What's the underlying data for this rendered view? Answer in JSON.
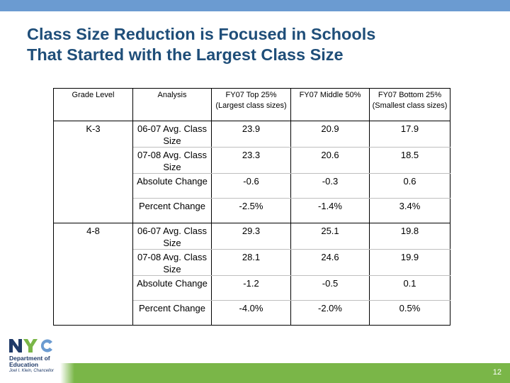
{
  "title_line1": "Class Size Reduction is Focused in Schools",
  "title_line2": "That Started with the Largest Class Size",
  "table": {
    "headers": [
      "Grade Level",
      "Analysis",
      "FY07 Top 25% (Largest class sizes)",
      "FY07 Middle 50%",
      "FY07 Bottom 25% (Smallest class sizes)"
    ],
    "groups": [
      {
        "grade": "K-3",
        "rows": [
          {
            "analysis": "06-07 Avg. Class Size",
            "top": "23.9",
            "middle": "20.9",
            "bottom": "17.9"
          },
          {
            "analysis": "07-08 Avg. Class Size",
            "top": "23.3",
            "middle": "20.6",
            "bottom": "18.5"
          },
          {
            "analysis": "Absolute Change",
            "top": "-0.6",
            "middle": "-0.3",
            "bottom": "0.6"
          },
          {
            "analysis": "Percent Change",
            "top": "-2.5%",
            "middle": "-1.4%",
            "bottom": "3.4%"
          }
        ]
      },
      {
        "grade": "4-8",
        "rows": [
          {
            "analysis": "06-07 Avg. Class Size",
            "top": "29.3",
            "middle": "25.1",
            "bottom": "19.8"
          },
          {
            "analysis": "07-08 Avg. Class Size",
            "top": "28.1",
            "middle": "24.6",
            "bottom": "19.9"
          },
          {
            "analysis": "Absolute Change",
            "top": "-1.2",
            "middle": "-0.5",
            "bottom": "0.1"
          },
          {
            "analysis": "Percent Change",
            "top": "-4.0%",
            "middle": "-2.0%",
            "bottom": "0.5%"
          }
        ]
      }
    ]
  },
  "logo": {
    "mark": "NYC",
    "line1": "Department of",
    "line2": "Education",
    "line3": "Joel I. Klein, Chancellor",
    "colors": {
      "N": "#1f3a68",
      "Y": "#7ab648",
      "C": "#6b9bd1"
    }
  },
  "page_number": "12",
  "colors": {
    "title": "#1f4e79",
    "top_bar": "#6b9bd1",
    "bottom_band": "#7ab648"
  }
}
